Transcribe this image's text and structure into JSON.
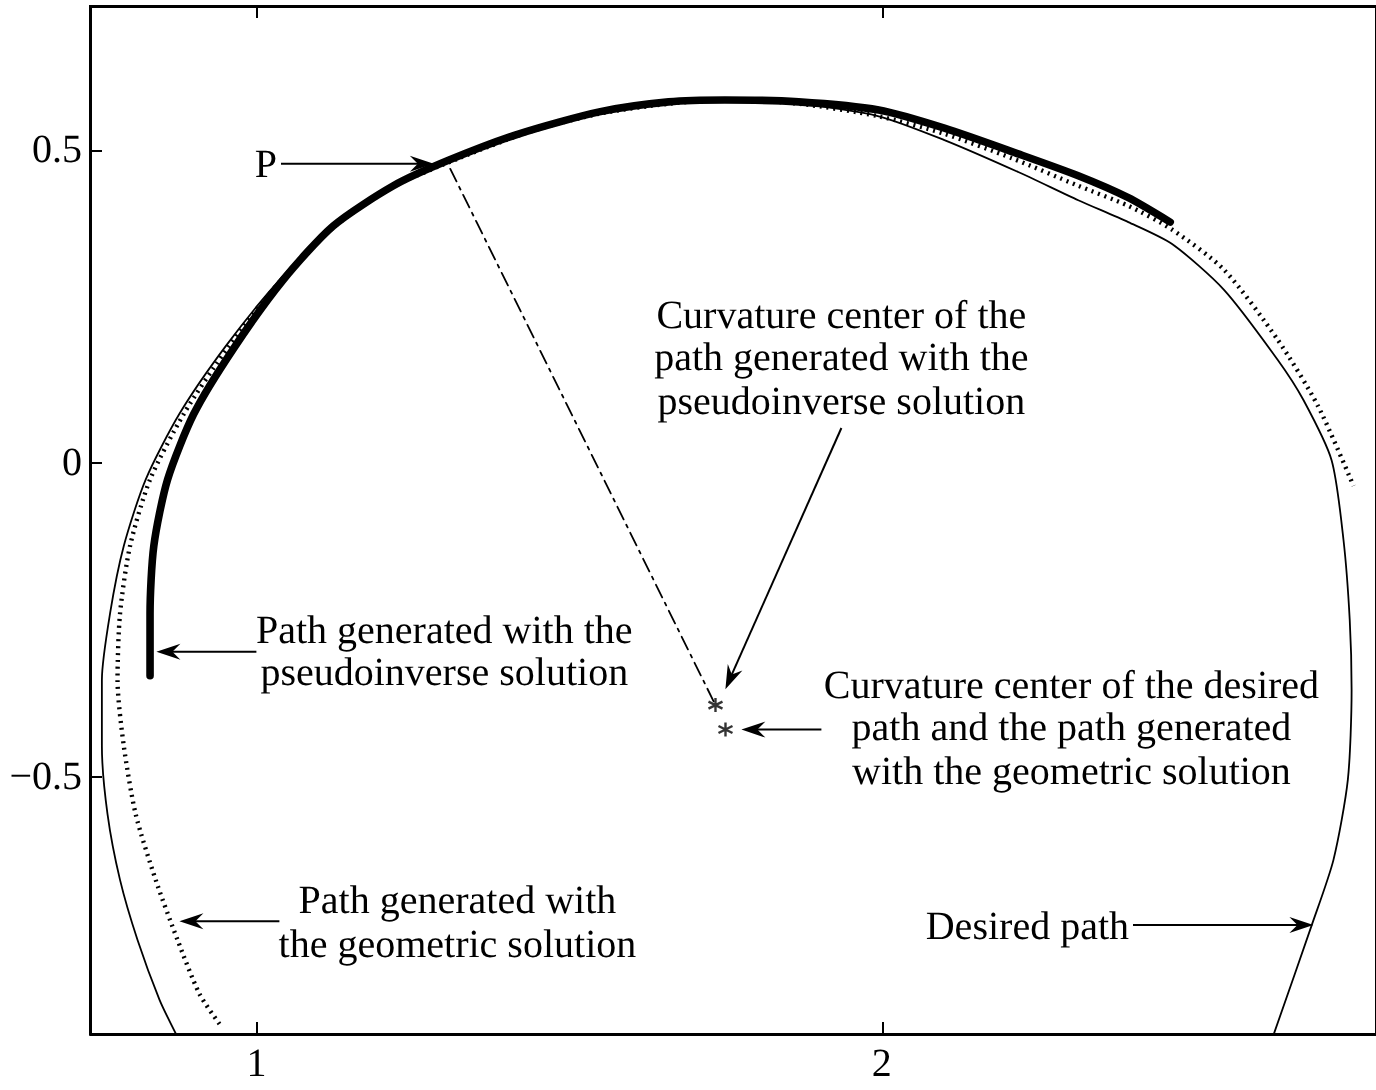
{
  "chart_data": {
    "type": "line",
    "xlim": [
      0.734,
      2.79
    ],
    "ylim": [
      -0.911,
      0.73
    ],
    "xticks": [
      1,
      2
    ],
    "yticks": [
      {
        "value": -0.5,
        "label": "−0.5"
      },
      0,
      0.5
    ],
    "series": [
      {
        "color": "#000000",
        "x": [
          0.871,
          0.845,
          0.81,
          0.782,
          0.762,
          0.753,
          0.753,
          0.766,
          0.788,
          0.823,
          0.877,
          0.951,
          1.037,
          1.123,
          1.219,
          1.324,
          1.436,
          1.548,
          1.659,
          1.749,
          1.867,
          1.995,
          2.1,
          2.218,
          2.314,
          2.394,
          2.464,
          2.547,
          2.633,
          2.674,
          2.719,
          2.738,
          2.748,
          2.751,
          2.745,
          2.722,
          2.687,
          2.627
        ],
        "values": [
          -0.91,
          -0.856,
          -0.761,
          -0.665,
          -0.56,
          -0.451,
          -0.346,
          -0.24,
          -0.132,
          -0.026,
          0.079,
          0.187,
          0.293,
          0.379,
          0.443,
          0.487,
          0.529,
          0.558,
          0.574,
          0.58,
          0.574,
          0.554,
          0.516,
          0.465,
          0.42,
          0.385,
          0.35,
          0.277,
          0.165,
          0.101,
          0.005,
          -0.122,
          -0.25,
          -0.362,
          -0.505,
          -0.633,
          -0.738,
          -0.91
        ]
      },
      {
        "color": "#000000",
        "line_style": "dotted",
        "x": [
          0.941,
          0.909,
          0.874,
          0.839,
          0.807,
          0.788,
          0.778,
          0.782,
          0.798,
          0.83,
          0.884,
          0.954,
          1.04,
          1.126,
          1.222,
          1.324,
          1.436,
          1.548,
          1.659,
          1.749,
          1.867,
          1.995,
          2.1,
          2.208,
          2.314,
          2.394,
          2.464,
          2.547,
          2.633,
          2.697,
          2.754
        ],
        "values": [
          -0.895,
          -0.847,
          -0.761,
          -0.665,
          -0.56,
          -0.451,
          -0.346,
          -0.24,
          -0.132,
          -0.026,
          0.079,
          0.184,
          0.293,
          0.379,
          0.443,
          0.487,
          0.529,
          0.558,
          0.574,
          0.58,
          0.574,
          0.554,
          0.526,
          0.487,
          0.443,
          0.411,
          0.373,
          0.309,
          0.197,
          0.092,
          -0.036
        ]
      },
      {
        "color": "#000000",
        "x": [
          0.83,
          0.83,
          0.836,
          0.858,
          0.9,
          0.964,
          1.043,
          1.123,
          1.219,
          1.308,
          1.42,
          1.548,
          1.659,
          1.749,
          1.867,
          1.995,
          2.1,
          2.218,
          2.314,
          2.394,
          2.461
        ],
        "values": [
          -0.339,
          -0.24,
          -0.132,
          -0.026,
          0.079,
          0.184,
          0.293,
          0.379,
          0.443,
          0.484,
          0.526,
          0.561,
          0.577,
          0.58,
          0.577,
          0.564,
          0.535,
          0.494,
          0.459,
          0.424,
          0.385
        ]
      },
      {
        "color": "#000000",
        "line_style": "dashdot",
        "x": [
          1.31,
          1.734
        ],
        "values": [
          0.47,
          -0.386
        ]
      },
      {
        "type": "scatter",
        "color": "#000000",
        "marker": "cross",
        "x": [
          1.734,
          1.75
        ],
        "values": [
          -0.386,
          -0.425
        ]
      }
    ],
    "annotations": [
      "P",
      "Curvature center of the path generated with the pseudoinverse solution",
      {
        "text": "Curvature center of the desired path and the path generated with the geometric solution",
        "x": 1.75,
        "y": -0.425
      },
      {
        "text": "Path generated with the pseudoinverse solution",
        "x": 0.84,
        "y": -0.301
      },
      {
        "text": "Path generated with the geometric solution",
        "x": 0.877,
        "y": -0.731
      },
      "Desired path"
    ]
  }
}
